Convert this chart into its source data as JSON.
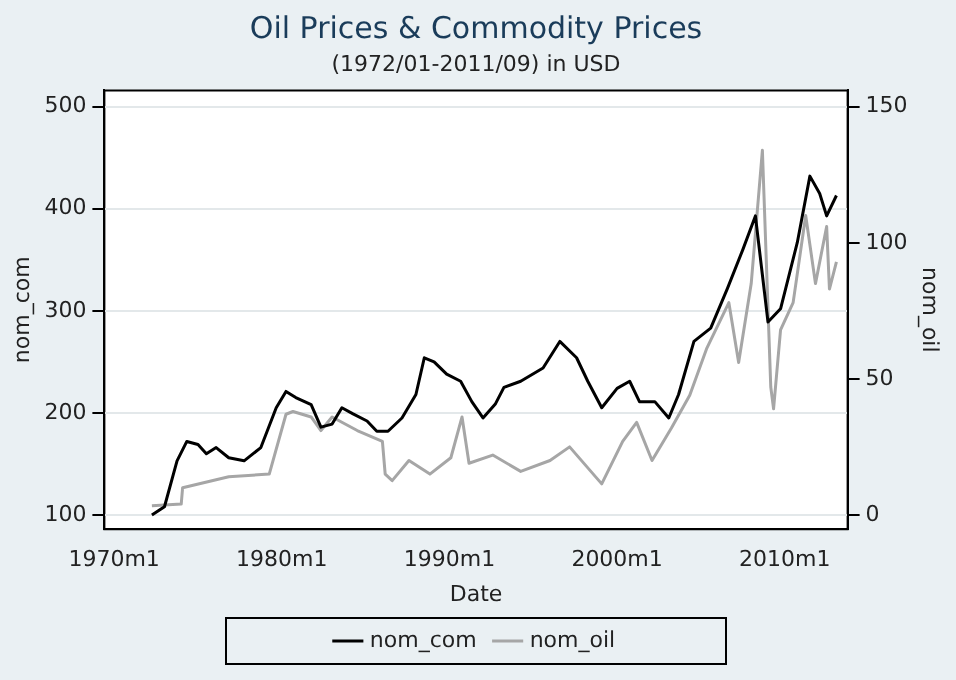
{
  "chart_data": {
    "type": "line",
    "title": "Oil Prices & Commodity Prices",
    "subtitle": "(1972/01-2011/09) in USD",
    "xlabel": "Date",
    "ylabel": "nom_com",
    "y2label": "nom_oil",
    "xlim": [
      "1969-06",
      "2013-10"
    ],
    "xticks": [
      {
        "value": "1970-01",
        "label": "1970m1"
      },
      {
        "value": "1980-01",
        "label": "1980m1"
      },
      {
        "value": "1990-01",
        "label": "1990m1"
      },
      {
        "value": "2000-01",
        "label": "2000m1"
      },
      {
        "value": "2010-01",
        "label": "2010m1"
      }
    ],
    "ylim": [
      86,
      516
    ],
    "yticks": [
      100,
      200,
      300,
      400,
      500
    ],
    "y2lim": [
      -5.25,
      156
    ],
    "y2ticks": [
      0,
      50,
      100,
      150
    ],
    "grid": "y",
    "legend": "bottom",
    "marker": "none",
    "line_style": "solid",
    "series": [
      {
        "name": "nom_com",
        "color": "#000000",
        "x": [
          "1972-04",
          "1973-01",
          "1973-10",
          "1974-05",
          "1975-01",
          "1975-07",
          "1976-02",
          "1976-11",
          "1977-10",
          "1978-10",
          "1979-09",
          "1980-04",
          "1980-11",
          "1981-10",
          "1982-05",
          "1983-01",
          "1983-08",
          "1984-04",
          "1985-02",
          "1985-09",
          "1986-05",
          "1987-03",
          "1988-01",
          "1988-07",
          "1989-02",
          "1989-11",
          "1990-09",
          "1991-05",
          "1992-01",
          "1992-10",
          "1993-04",
          "1994-04",
          "1995-08",
          "1996-08",
          "1997-08",
          "1998-04",
          "1999-02",
          "2000-01",
          "2000-10",
          "2001-05",
          "2002-04",
          "2003-02",
          "2003-09",
          "2004-08",
          "2005-08",
          "2006-08",
          "2007-07",
          "2008-04",
          "2009-01",
          "2009-10",
          "2010-10",
          "2011-07",
          "2012-02",
          "2012-07",
          "2013-02"
        ],
        "values": [
          100,
          108,
          153,
          172,
          169,
          160,
          166,
          156,
          153,
          166,
          205,
          221,
          215,
          208,
          186,
          189,
          205,
          199,
          192,
          182,
          182,
          195,
          218,
          254,
          250,
          238,
          231,
          211,
          195,
          209,
          225,
          231,
          244,
          270,
          254,
          231,
          205,
          224,
          231,
          211,
          211,
          195,
          218,
          270,
          283,
          322,
          360,
          393,
          289,
          302,
          367,
          432,
          415,
          393,
          413
        ]
      },
      {
        "name": "nom_oil",
        "color": "#a6a6a6",
        "axis": "y2",
        "x": [
          "1972-04",
          "1974-01",
          "1974-02",
          "1976-11",
          "1979-04",
          "1980-04",
          "1980-09",
          "1981-10",
          "1982-05",
          "1983-01",
          "1984-07",
          "1986-01",
          "1986-03",
          "1986-08",
          "1987-08",
          "1988-11",
          "1990-02",
          "1990-10",
          "1991-03",
          "1992-08",
          "1994-04",
          "1996-01",
          "1997-03",
          "1999-02",
          "2000-05",
          "2001-03",
          "2002-02",
          "2003-04",
          "2004-05",
          "2005-05",
          "2006-09",
          "2007-04",
          "2008-01",
          "2008-09",
          "2009-03",
          "2009-05",
          "2009-10",
          "2010-07",
          "2011-04",
          "2011-11",
          "2012-07",
          "2012-09",
          "2013-02"
        ],
        "values": [
          3.4,
          4,
          10,
          14,
          15,
          37,
          38,
          36,
          31,
          36,
          31,
          27,
          15,
          12.6,
          20,
          15,
          21,
          36,
          19,
          22,
          16,
          20,
          25,
          11.4,
          27,
          34,
          20,
          32,
          44,
          61,
          78,
          56,
          85,
          134,
          47,
          39,
          68,
          78,
          110,
          85,
          106,
          83,
          93
        ]
      }
    ]
  }
}
